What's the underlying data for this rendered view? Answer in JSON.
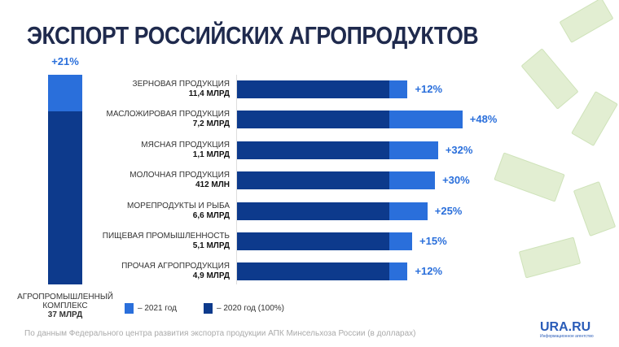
{
  "title": "ЭКСПОРТ РОССИЙСКИХ АГРОПРОДУКТОВ",
  "colors": {
    "y2020": "#0d3a8c",
    "y2021": "#2a6fdb"
  },
  "chart_data": {
    "type": "bar",
    "orientation": "horizontal-stacked",
    "title": "ЭКСПОРТ РОССИЙСКИХ АГРОПРОДУКТОВ",
    "total": {
      "name": "АГРОПРОМЫШЛЕННЫЙ КОМПЛЕКС",
      "value": "37 МЛРД",
      "growth": 21,
      "growth_label": "+21%"
    },
    "categories": [
      {
        "name": "ЗЕРНОВАЯ ПРОДУКЦИЯ",
        "value": "11,4 МЛРД",
        "growth": 12,
        "growth_label": "+12%"
      },
      {
        "name": "МАСЛОЖИРОВАЯ ПРОДУКЦИЯ",
        "value": "7,2 МЛРД",
        "growth": 48,
        "growth_label": "+48%"
      },
      {
        "name": "МЯСНАЯ ПРОДУКЦИЯ",
        "value": "1,1 МЛРД",
        "growth": 32,
        "growth_label": "+32%"
      },
      {
        "name": "МОЛОЧНАЯ ПРОДУКЦИЯ",
        "value": "412 МЛН",
        "growth": 30,
        "growth_label": "+30%"
      },
      {
        "name": "МОРЕПРОДУКТЫ И РЫБА",
        "value": "6,6 МЛРД",
        "growth": 25,
        "growth_label": "+25%"
      },
      {
        "name": "ПИЩЕВАЯ ПРОМЫШЛЕННОСТЬ",
        "value": "5,1 МЛРД",
        "growth": 15,
        "growth_label": "+15%"
      },
      {
        "name": "ПРОЧАЯ АГРОПРОДУКЦИЯ",
        "value": "4,9 МЛРД",
        "growth": 12,
        "growth_label": "+12%"
      }
    ],
    "legend": [
      {
        "label": "– 2021 год",
        "color": "#2a6fdb"
      },
      {
        "label": "– 2020 год (100%)",
        "color": "#0d3a8c"
      }
    ]
  },
  "source": "По данным Федерального центра развития экспорта продукции АПК Минсельхоза России (в долларах)",
  "logo": {
    "name": "URA.RU",
    "subtitle": "Информационное агентство"
  }
}
